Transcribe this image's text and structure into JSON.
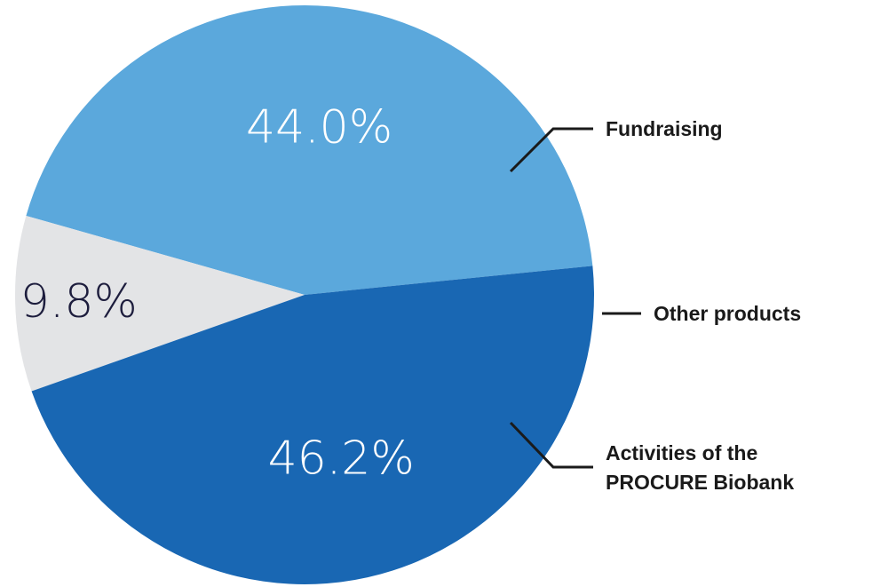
{
  "chart_data": {
    "type": "pie",
    "slices": [
      {
        "name": "Fundraising",
        "value": 44.0,
        "label": "44.0%",
        "color": "#5ba8dc",
        "label_color": "#ffffff"
      },
      {
        "name": "Other products",
        "value": 9.8,
        "label": "9.8%",
        "color": "#e3e4e6",
        "label_color": "#1d1d3d"
      },
      {
        "name": "Activities of the PROCURE Biobank",
        "value": 46.2,
        "label": "46.2%",
        "color": "#1967b3",
        "label_color": "#ffffff"
      }
    ],
    "legend": {
      "fundraising": {
        "lines": [
          "Fundraising"
        ]
      },
      "other": {
        "lines": [
          "Other products"
        ]
      },
      "procure": {
        "lines": [
          "Activities of the",
          "PROCURE Biobank"
        ]
      }
    },
    "legend_placement": "right"
  }
}
